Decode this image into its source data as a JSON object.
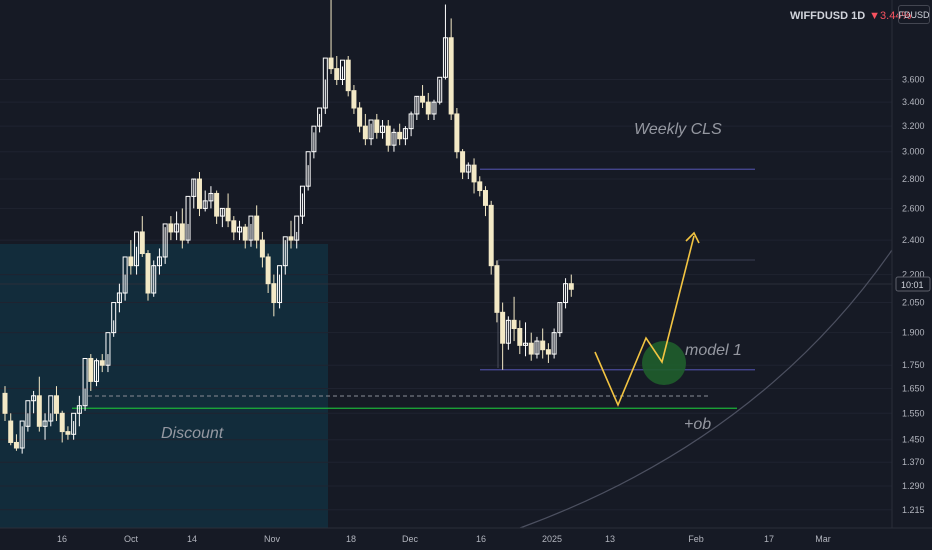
{
  "header": {
    "symbol": "WIFFDUSD 1D",
    "change": "▼3.44%",
    "currency": "FDUSD"
  },
  "colors": {
    "background": "#161a25",
    "candle_up": "#ffffff",
    "candle_down": "#f3e9c6",
    "grid": "#1f2330",
    "discount_zone": "#12303f",
    "level_line": "#4a4a9a",
    "green_line": "#1bb238",
    "projection": "#f2c442",
    "target_circle": "#1f5e2c",
    "curve": "#4c5060"
  },
  "chart_data": {
    "type": "candlestick",
    "y_axis": {
      "scale": "log",
      "range": [
        1.19,
        4.4
      ],
      "tick_labels": [
        "3.600",
        "3.400",
        "3.200",
        "3.000",
        "2.800",
        "2.600",
        "2.400",
        "2.200",
        "2.050",
        "1.900",
        "1.750",
        "1.650",
        "1.550",
        "1.450",
        "1.370",
        "1.290",
        "1.215"
      ],
      "current_price_label": "10:01"
    },
    "x_axis": {
      "tick_labels": [
        "16",
        "Oct",
        "14",
        "Nov",
        "18",
        "Dec",
        "16",
        "2025",
        "13",
        "Feb",
        "17",
        "Mar"
      ]
    },
    "candles": [
      [
        1.63,
        1.66,
        1.55,
        1.52
      ],
      [
        1.52,
        1.55,
        1.44,
        1.43
      ],
      [
        1.44,
        1.47,
        1.42,
        1.41
      ],
      [
        1.42,
        1.5,
        1.52,
        1.4
      ],
      [
        1.5,
        1.55,
        1.6,
        1.48
      ],
      [
        1.6,
        1.64,
        1.62,
        1.55
      ],
      [
        1.62,
        1.7,
        1.5,
        1.48
      ],
      [
        1.5,
        1.55,
        1.52,
        1.45
      ],
      [
        1.52,
        1.55,
        1.62,
        1.5
      ],
      [
        1.62,
        1.66,
        1.55,
        1.52
      ],
      [
        1.55,
        1.56,
        1.48,
        1.44
      ],
      [
        1.48,
        1.5,
        1.47,
        1.45
      ],
      [
        1.47,
        1.52,
        1.55,
        1.45
      ],
      [
        1.55,
        1.62,
        1.58,
        1.5
      ],
      [
        1.58,
        1.65,
        1.78,
        1.56
      ],
      [
        1.78,
        1.8,
        1.68,
        1.64
      ],
      [
        1.68,
        1.78,
        1.77,
        1.66
      ],
      [
        1.77,
        1.8,
        1.75,
        1.72
      ],
      [
        1.75,
        1.8,
        1.9,
        1.72
      ],
      [
        1.9,
        1.96,
        2.05,
        1.88
      ],
      [
        2.05,
        2.15,
        2.1,
        2.0
      ],
      [
        2.1,
        2.2,
        2.3,
        2.06
      ],
      [
        2.3,
        2.4,
        2.25,
        2.2
      ],
      [
        2.25,
        2.36,
        2.45,
        2.2
      ],
      [
        2.45,
        2.55,
        2.32,
        2.3
      ],
      [
        2.32,
        2.34,
        2.1,
        2.06
      ],
      [
        2.1,
        2.28,
        2.25,
        2.08
      ],
      [
        2.25,
        2.35,
        2.3,
        2.2
      ],
      [
        2.3,
        2.48,
        2.5,
        2.26
      ],
      [
        2.5,
        2.55,
        2.45,
        2.4
      ],
      [
        2.45,
        2.58,
        2.5,
        2.4
      ],
      [
        2.5,
        2.6,
        2.4,
        2.35
      ],
      [
        2.4,
        2.5,
        2.68,
        2.38
      ],
      [
        2.68,
        2.8,
        2.8,
        2.6
      ],
      [
        2.8,
        2.85,
        2.6,
        2.55
      ],
      [
        2.6,
        2.72,
        2.65,
        2.58
      ],
      [
        2.65,
        2.75,
        2.7,
        2.6
      ],
      [
        2.7,
        2.72,
        2.55,
        2.5
      ],
      [
        2.55,
        2.6,
        2.6,
        2.48
      ],
      [
        2.6,
        2.7,
        2.52,
        2.48
      ],
      [
        2.52,
        2.55,
        2.45,
        2.4
      ],
      [
        2.45,
        2.52,
        2.48,
        2.4
      ],
      [
        2.48,
        2.5,
        2.4,
        2.35
      ],
      [
        2.4,
        2.5,
        2.55,
        2.36
      ],
      [
        2.55,
        2.62,
        2.4,
        2.35
      ],
      [
        2.4,
        2.45,
        2.3,
        2.24
      ],
      [
        2.3,
        2.32,
        2.15,
        2.1
      ],
      [
        2.15,
        2.2,
        2.05,
        1.98
      ],
      [
        2.05,
        2.2,
        2.25,
        2.02
      ],
      [
        2.25,
        2.4,
        2.42,
        2.2
      ],
      [
        2.42,
        2.52,
        2.4,
        2.35
      ],
      [
        2.4,
        2.45,
        2.55,
        2.35
      ],
      [
        2.55,
        2.7,
        2.75,
        2.5
      ],
      [
        2.75,
        2.9,
        3.0,
        2.72
      ],
      [
        3.0,
        3.15,
        3.2,
        2.95
      ],
      [
        3.2,
        3.3,
        3.35,
        3.15
      ],
      [
        3.35,
        3.6,
        3.8,
        3.3
      ],
      [
        3.8,
        4.4,
        3.7,
        3.65
      ],
      [
        3.7,
        3.82,
        3.6,
        3.55
      ],
      [
        3.6,
        3.72,
        3.78,
        3.55
      ],
      [
        3.78,
        3.82,
        3.5,
        3.45
      ],
      [
        3.5,
        3.55,
        3.35,
        3.3
      ],
      [
        3.35,
        3.4,
        3.2,
        3.15
      ],
      [
        3.2,
        3.3,
        3.1,
        3.05
      ],
      [
        3.1,
        3.22,
        3.25,
        3.05
      ],
      [
        3.25,
        3.3,
        3.15,
        3.1
      ],
      [
        3.15,
        3.25,
        3.2,
        3.1
      ],
      [
        3.2,
        3.25,
        3.05,
        3.0
      ],
      [
        3.05,
        3.18,
        3.15,
        3.0
      ],
      [
        3.15,
        3.22,
        3.1,
        3.05
      ],
      [
        3.1,
        3.2,
        3.18,
        3.05
      ],
      [
        3.18,
        3.32,
        3.3,
        3.12
      ],
      [
        3.3,
        3.45,
        3.45,
        3.25
      ],
      [
        3.45,
        3.55,
        3.4,
        3.35
      ],
      [
        3.4,
        3.48,
        3.3,
        3.25
      ],
      [
        3.3,
        3.42,
        3.4,
        3.25
      ],
      [
        3.4,
        3.6,
        3.62,
        3.38
      ],
      [
        3.62,
        4.35,
        4.0,
        3.6
      ],
      [
        4.0,
        4.2,
        3.3,
        3.25
      ],
      [
        3.3,
        3.35,
        3.0,
        2.95
      ],
      [
        3.0,
        3.02,
        2.85,
        2.8
      ],
      [
        2.85,
        2.92,
        2.9,
        2.8
      ],
      [
        2.9,
        2.95,
        2.78,
        2.7
      ],
      [
        2.78,
        2.82,
        2.72,
        2.68
      ],
      [
        2.72,
        2.75,
        2.62,
        2.55
      ],
      [
        2.62,
        2.65,
        2.25,
        2.2
      ],
      [
        2.25,
        2.28,
        2.0,
        1.95
      ],
      [
        2.0,
        2.05,
        1.85,
        1.73
      ],
      [
        1.85,
        1.98,
        1.96,
        1.82
      ],
      [
        1.96,
        2.08,
        1.92,
        1.86
      ],
      [
        1.92,
        1.96,
        1.84,
        1.8
      ],
      [
        1.84,
        1.95,
        1.85,
        1.79
      ],
      [
        1.85,
        1.9,
        1.8,
        1.77
      ],
      [
        1.8,
        1.88,
        1.86,
        1.78
      ],
      [
        1.86,
        1.92,
        1.82,
        1.78
      ],
      [
        1.82,
        1.85,
        1.8,
        1.76
      ],
      [
        1.8,
        1.92,
        1.9,
        1.78
      ],
      [
        1.9,
        2.05,
        2.05,
        1.88
      ],
      [
        2.05,
        2.18,
        2.15,
        2.02
      ],
      [
        2.15,
        2.2,
        2.12,
        2.08
      ]
    ],
    "levels": [
      {
        "name": "Weekly CLS",
        "value": 2.87
      },
      {
        "name": "model 1",
        "value": 1.73
      },
      {
        "name": "+ob",
        "value": 1.57
      }
    ],
    "annotations": [
      "Weekly CLS",
      "model 1",
      "Discount",
      "+ob"
    ]
  }
}
